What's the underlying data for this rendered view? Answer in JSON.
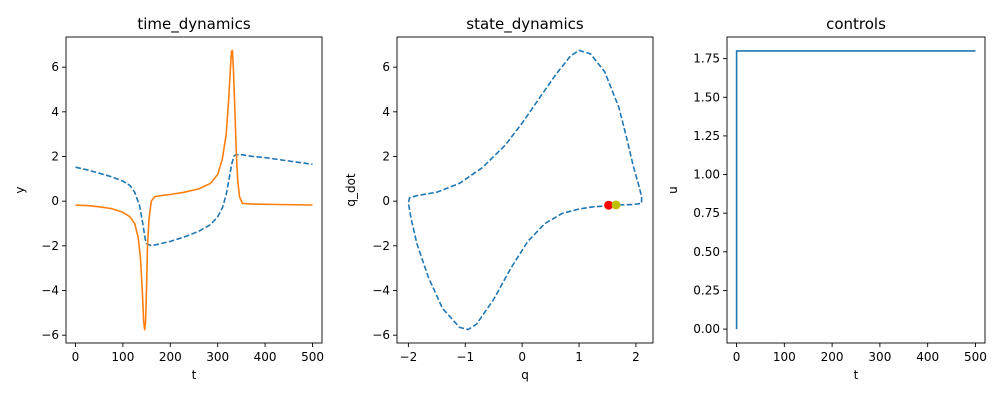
{
  "chart_data": [
    {
      "type": "line",
      "title": "time_dynamics",
      "xlabel": "t",
      "ylabel": "y",
      "xlim": [
        -20,
        520
      ],
      "ylim": [
        -6.35,
        7.35
      ],
      "xticks": [
        0,
        100,
        200,
        300,
        400,
        500
      ],
      "yticks": [
        -6,
        -4,
        -2,
        0,
        2,
        4,
        6
      ],
      "xtick_labels": [
        "0",
        "100",
        "200",
        "300",
        "400",
        "500"
      ],
      "ytick_labels": [
        "−6",
        "−4",
        "−2",
        "0",
        "2",
        "4",
        "6"
      ],
      "grid": false,
      "series": [
        {
          "style": "dashed",
          "color": "#1f77b4",
          "points": [
            [
              0,
              1.52
            ],
            [
              25,
              1.4
            ],
            [
              50,
              1.25
            ],
            [
              75,
              1.1
            ],
            [
              100,
              0.9
            ],
            [
              115,
              0.7
            ],
            [
              125,
              0.4
            ],
            [
              135,
              -0.2
            ],
            [
              142,
              -1.0
            ],
            [
              147,
              -1.7
            ],
            [
              150,
              -1.9
            ],
            [
              160,
              -2.0
            ],
            [
              180,
              -1.9
            ],
            [
              200,
              -1.8
            ],
            [
              230,
              -1.6
            ],
            [
              260,
              -1.35
            ],
            [
              285,
              -1.05
            ],
            [
              300,
              -0.7
            ],
            [
              310,
              -0.3
            ],
            [
              318,
              0.3
            ],
            [
              324,
              1.0
            ],
            [
              330,
              1.7
            ],
            [
              335,
              2.05
            ],
            [
              345,
              2.1
            ],
            [
              375,
              2.0
            ],
            [
              400,
              1.95
            ],
            [
              450,
              1.8
            ],
            [
              500,
              1.65
            ]
          ]
        },
        {
          "style": "solid",
          "color": "#ff7f0e",
          "points": [
            [
              0,
              -0.18
            ],
            [
              25,
              -0.2
            ],
            [
              50,
              -0.25
            ],
            [
              75,
              -0.33
            ],
            [
              100,
              -0.5
            ],
            [
              115,
              -0.7
            ],
            [
              125,
              -1.0
            ],
            [
              132,
              -1.6
            ],
            [
              137,
              -2.5
            ],
            [
              141,
              -4.0
            ],
            [
              144,
              -5.4
            ],
            [
              146,
              -5.75
            ],
            [
              148,
              -5.4
            ],
            [
              150,
              -3.8
            ],
            [
              152,
              -2.0
            ],
            [
              155,
              -0.8
            ],
            [
              160,
              0.0
            ],
            [
              167,
              0.2
            ],
            [
              180,
              0.25
            ],
            [
              200,
              0.3
            ],
            [
              230,
              0.4
            ],
            [
              260,
              0.55
            ],
            [
              285,
              0.8
            ],
            [
              300,
              1.2
            ],
            [
              310,
              1.9
            ],
            [
              318,
              3.0
            ],
            [
              323,
              4.5
            ],
            [
              327,
              6.0
            ],
            [
              329,
              6.7
            ],
            [
              331,
              6.75
            ],
            [
              333,
              6.0
            ],
            [
              336,
              4.2
            ],
            [
              339,
              2.3
            ],
            [
              342,
              1.0
            ],
            [
              346,
              0.2
            ],
            [
              352,
              -0.1
            ],
            [
              375,
              -0.13
            ],
            [
              425,
              -0.15
            ],
            [
              500,
              -0.17
            ]
          ]
        }
      ]
    },
    {
      "type": "line",
      "title": "state_dynamics",
      "xlabel": "q",
      "ylabel": "q_dot",
      "xlim": [
        -2.2,
        2.3
      ],
      "ylim": [
        -6.35,
        7.35
      ],
      "xticks": [
        -2,
        -1,
        0,
        1,
        2
      ],
      "yticks": [
        -6,
        -4,
        -2,
        0,
        2,
        4,
        6
      ],
      "xtick_labels": [
        "−2",
        "−1",
        "0",
        "1",
        "2"
      ],
      "ytick_labels": [
        "−6",
        "−4",
        "−2",
        "0",
        "2",
        "4",
        "6"
      ],
      "grid": false,
      "series": [
        {
          "style": "dashed",
          "color": "#1f77b4",
          "points": [
            [
              1.55,
              -0.2
            ],
            [
              1.25,
              -0.25
            ],
            [
              1.0,
              -0.35
            ],
            [
              0.7,
              -0.55
            ],
            [
              0.4,
              -1.0
            ],
            [
              0.1,
              -1.8
            ],
            [
              -0.2,
              -3.0
            ],
            [
              -0.5,
              -4.4
            ],
            [
              -0.8,
              -5.5
            ],
            [
              -0.95,
              -5.75
            ],
            [
              -1.1,
              -5.65
            ],
            [
              -1.4,
              -4.8
            ],
            [
              -1.65,
              -3.4
            ],
            [
              -1.85,
              -1.9
            ],
            [
              -1.95,
              -0.8
            ],
            [
              -2.0,
              -0.1
            ],
            [
              -1.98,
              0.15
            ],
            [
              -1.85,
              0.25
            ],
            [
              -1.5,
              0.4
            ],
            [
              -1.1,
              0.8
            ],
            [
              -0.7,
              1.5
            ],
            [
              -0.3,
              2.5
            ],
            [
              0.0,
              3.5
            ],
            [
              0.3,
              4.6
            ],
            [
              0.6,
              5.7
            ],
            [
              0.85,
              6.5
            ],
            [
              1.0,
              6.75
            ],
            [
              1.2,
              6.6
            ],
            [
              1.45,
              5.8
            ],
            [
              1.7,
              4.2
            ],
            [
              1.85,
              2.7
            ],
            [
              1.95,
              1.6
            ],
            [
              2.05,
              0.7
            ],
            [
              2.1,
              0.2
            ],
            [
              2.1,
              -0.1
            ],
            [
              1.95,
              -0.15
            ],
            [
              1.65,
              -0.17
            ]
          ]
        }
      ],
      "markers": [
        {
          "x": 1.52,
          "y": -0.18,
          "color": "#ff0000"
        },
        {
          "x": 1.65,
          "y": -0.17,
          "color": "#bfbf00"
        }
      ]
    },
    {
      "type": "line",
      "title": "controls",
      "xlabel": "t",
      "ylabel": "u",
      "xlim": [
        -20,
        520
      ],
      "ylim": [
        -0.09,
        1.89
      ],
      "xticks": [
        0,
        100,
        200,
        300,
        400,
        500
      ],
      "yticks": [
        0,
        0.25,
        0.5,
        0.75,
        1.0,
        1.25,
        1.5,
        1.75
      ],
      "xtick_labels": [
        "0",
        "100",
        "200",
        "300",
        "400",
        "500"
      ],
      "ytick_labels": [
        "0.00",
        "0.25",
        "0.50",
        "0.75",
        "1.00",
        "1.25",
        "1.50",
        "1.75"
      ],
      "grid": false,
      "series": [
        {
          "style": "solid",
          "color": "#1f77b4",
          "points": [
            [
              0,
              0
            ],
            [
              0,
              1.8
            ],
            [
              500,
              1.8
            ]
          ]
        }
      ]
    }
  ]
}
